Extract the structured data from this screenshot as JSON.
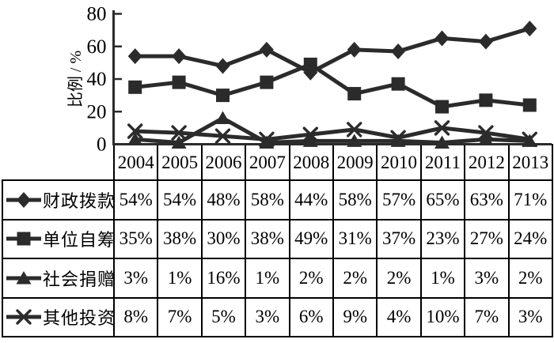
{
  "chart_data": {
    "type": "line",
    "title": "",
    "xlabel": "",
    "ylabel": "比例 / %",
    "ylim": [
      0,
      80
    ],
    "yticks": [
      0,
      20,
      40,
      60,
      80
    ],
    "grid": false,
    "legend_position": "table-left-column",
    "line_color": "#2b2b2b",
    "unit_suffix": "%",
    "categories": [
      "2004",
      "2005",
      "2006",
      "2007",
      "2008",
      "2009",
      "2010",
      "2011",
      "2012",
      "2013"
    ],
    "series": [
      {
        "name": "财政拨款",
        "marker": "diamond",
        "values": [
          54,
          54,
          48,
          58,
          44,
          58,
          57,
          65,
          63,
          71
        ]
      },
      {
        "name": "单位自筹",
        "marker": "square",
        "values": [
          35,
          38,
          30,
          38,
          49,
          31,
          37,
          23,
          27,
          24
        ]
      },
      {
        "name": "社会捐赠",
        "marker": "triangle",
        "values": [
          3,
          1,
          16,
          1,
          2,
          2,
          2,
          1,
          3,
          2
        ]
      },
      {
        "name": "其他投资",
        "marker": "x",
        "values": [
          8,
          7,
          5,
          3,
          6,
          9,
          4,
          10,
          7,
          3
        ]
      }
    ]
  }
}
